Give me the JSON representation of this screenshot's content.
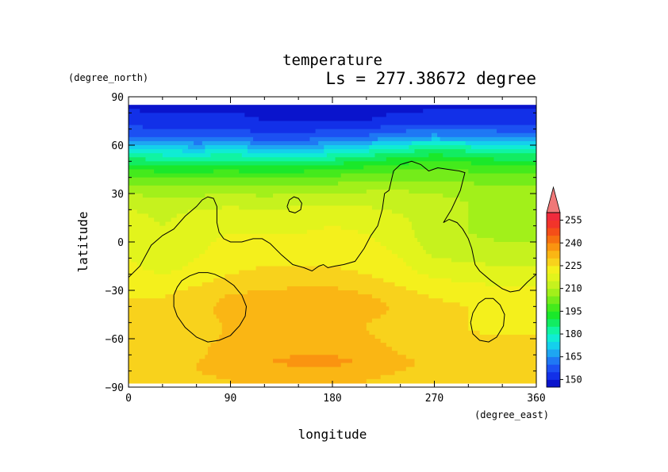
{
  "chart_data": {
    "type": "heatmap",
    "title": "temperature",
    "subtitle": "Ls = 277.38672 degree",
    "xlabel": "longitude",
    "ylabel": "latitude",
    "x_unit": "(degree_east)",
    "y_unit": "(degree_north)",
    "xlim": [
      0,
      360
    ],
    "ylim": [
      -90,
      90
    ],
    "x_ticks": [
      "0",
      "90",
      "180",
      "270",
      "360"
    ],
    "y_ticks": [
      "90",
      "60",
      "30",
      "0",
      "−30",
      "−60",
      "−90"
    ],
    "colorbar": {
      "labels": [
        "255",
        "240",
        "225",
        "210",
        "195",
        "180",
        "165",
        "150"
      ],
      "levels": [
        145,
        150,
        155,
        160,
        165,
        170,
        175,
        180,
        185,
        190,
        195,
        200,
        205,
        210,
        215,
        220,
        225,
        230,
        235,
        240,
        245,
        250,
        255,
        260
      ],
      "colors": [
        "#0a14cc",
        "#1230e8",
        "#1c50f2",
        "#1f78f4",
        "#1ea6f2",
        "#14d0ec",
        "#10ecd4",
        "#10f4a2",
        "#12ec62",
        "#1ae82a",
        "#44ea1c",
        "#74ec1a",
        "#a2f01a",
        "#c6f21e",
        "#e2f41c",
        "#f4f01c",
        "#f8d21c",
        "#fab614",
        "#fa9410",
        "#f67010",
        "#f44e18",
        "#f2342a",
        "#f02a3c"
      ],
      "over_color": "#f07878"
    },
    "field_lat_nodes": [
      85,
      75,
      65,
      60,
      55,
      50,
      45,
      40,
      35,
      30,
      25,
      20,
      15,
      10,
      5,
      0,
      -5,
      -10,
      -15,
      -20,
      -25,
      -30,
      -35,
      -40,
      -45,
      -50,
      -55,
      -60,
      -65,
      -70,
      -75,
      -80,
      -85
    ],
    "field_lon_nodes": [
      0,
      30,
      60,
      90,
      120,
      150,
      180,
      210,
      240,
      270,
      300,
      330,
      355
    ],
    "field_values": [
      [
        149,
        149,
        149,
        149,
        149,
        149,
        149,
        149,
        149,
        149,
        149,
        149,
        149
      ],
      [
        152,
        151,
        151,
        151,
        150,
        150,
        150,
        150,
        151,
        152,
        153,
        153,
        153
      ],
      [
        161,
        160,
        158,
        159,
        157,
        157,
        159,
        161,
        165,
        167,
        165,
        164,
        164
      ],
      [
        170,
        169,
        167,
        169,
        166,
        166,
        168,
        172,
        177,
        180,
        178,
        174,
        174
      ],
      [
        180,
        178,
        177,
        179,
        176,
        176,
        178,
        182,
        186,
        189,
        187,
        184,
        184
      ],
      [
        188,
        186,
        186,
        187,
        185,
        185,
        187,
        190,
        193,
        195,
        194,
        191,
        191
      ],
      [
        195,
        193,
        193,
        194,
        192,
        193,
        195,
        197,
        199,
        200,
        199,
        197,
        197
      ],
      [
        201,
        199,
        199,
        200,
        199,
        200,
        201,
        203,
        204,
        204,
        203,
        201,
        201
      ],
      [
        206,
        204,
        204,
        205,
        204,
        205,
        206,
        207,
        208,
        207,
        206,
        205,
        205
      ],
      [
        210,
        208,
        209,
        210,
        209,
        210,
        211,
        211,
        211,
        210,
        209,
        208,
        208
      ],
      [
        213,
        211,
        212,
        213,
        212,
        213,
        214,
        213,
        212,
        211,
        210,
        209,
        209
      ],
      [
        215,
        213,
        215,
        216,
        215,
        216,
        217,
        216,
        214,
        211,
        210,
        209,
        209
      ],
      [
        217,
        214,
        217,
        218,
        217,
        218,
        219,
        218,
        216,
        211,
        210,
        209,
        209
      ],
      [
        218,
        215,
        218,
        219,
        219,
        219,
        220,
        219,
        217,
        211,
        210,
        209,
        209
      ],
      [
        218,
        215,
        218,
        220,
        220,
        220,
        221,
        220,
        218,
        211,
        210,
        209,
        209
      ],
      [
        219,
        216,
        219,
        221,
        221,
        221,
        222,
        221,
        218,
        212,
        211,
        210,
        210
      ],
      [
        219,
        216,
        219,
        222,
        222,
        223,
        223,
        222,
        219,
        213,
        212,
        211,
        211
      ],
      [
        220,
        217,
        220,
        223,
        224,
        224,
        224,
        223,
        220,
        215,
        214,
        213,
        213
      ],
      [
        221,
        218,
        221,
        224,
        225,
        225,
        225,
        224,
        221,
        217,
        216,
        215,
        215
      ],
      [
        222,
        220,
        222,
        225,
        226,
        226,
        226,
        225,
        222,
        219,
        218,
        217,
        217
      ],
      [
        223,
        222,
        224,
        227,
        228,
        228,
        228,
        227,
        224,
        221,
        220,
        219,
        219
      ],
      [
        224,
        224,
        226,
        229,
        230,
        231,
        231,
        229,
        226,
        223,
        222,
        221,
        221
      ],
      [
        225,
        225,
        227,
        231,
        232,
        233,
        233,
        231,
        228,
        225,
        224,
        223,
        223
      ],
      [
        226,
        226,
        228,
        232,
        233,
        234,
        234,
        232,
        229,
        226,
        225,
        224,
        224
      ],
      [
        226,
        226,
        228,
        232,
        233,
        234,
        233,
        231,
        229,
        226,
        225,
        224,
        224
      ],
      [
        226,
        226,
        227,
        231,
        233,
        234,
        232,
        230,
        228,
        226,
        225,
        224,
        224
      ],
      [
        226,
        226,
        227,
        231,
        233,
        234,
        233,
        230,
        228,
        226,
        225,
        224,
        224
      ],
      [
        227,
        227,
        228,
        231,
        233,
        234,
        234,
        231,
        228,
        227,
        226,
        226,
        226
      ],
      [
        228,
        228,
        229,
        232,
        233,
        234,
        234,
        232,
        229,
        228,
        227,
        227,
        227
      ],
      [
        228,
        228,
        229,
        232,
        234,
        235,
        235,
        233,
        230,
        228,
        227,
        227,
        227
      ],
      [
        229,
        229,
        230,
        233,
        235,
        236,
        236,
        235,
        231,
        229,
        228,
        228,
        228
      ],
      [
        229,
        229,
        230,
        232,
        233,
        233,
        233,
        232,
        230,
        229,
        228,
        228,
        228
      ],
      [
        228,
        228,
        229,
        230,
        230,
        230,
        230,
        230,
        229,
        228,
        228,
        228,
        228
      ]
    ],
    "topography_contours": [
      {
        "name": "northern-highland-boundary",
        "points": [
          [
            0,
            -22
          ],
          [
            10,
            -15
          ],
          [
            20,
            -2
          ],
          [
            30,
            4
          ],
          [
            40,
            8
          ],
          [
            50,
            16
          ],
          [
            60,
            22
          ],
          [
            65,
            26
          ],
          [
            70,
            28
          ],
          [
            75,
            27
          ],
          [
            78,
            22
          ],
          [
            78,
            12
          ],
          [
            80,
            6
          ],
          [
            84,
            2
          ],
          [
            90,
            0
          ],
          [
            100,
            0
          ],
          [
            110,
            2
          ],
          [
            118,
            2
          ],
          [
            125,
            -1
          ],
          [
            135,
            -8
          ],
          [
            145,
            -14
          ],
          [
            155,
            -16
          ],
          [
            162,
            -18
          ],
          [
            168,
            -15
          ],
          [
            172,
            -14
          ],
          [
            176,
            -16
          ],
          [
            182,
            -15
          ],
          [
            190,
            -14
          ],
          [
            200,
            -12
          ],
          [
            208,
            -4
          ],
          [
            214,
            4
          ],
          [
            220,
            10
          ],
          [
            224,
            20
          ],
          [
            226,
            30
          ],
          [
            230,
            32
          ],
          [
            232,
            38
          ],
          [
            234,
            44
          ],
          [
            240,
            48
          ],
          [
            250,
            50
          ],
          [
            258,
            48
          ],
          [
            265,
            44
          ],
          [
            273,
            46
          ],
          [
            282,
            45
          ],
          [
            292,
            44
          ],
          [
            297,
            43
          ],
          [
            293,
            32
          ],
          [
            285,
            20
          ],
          [
            278,
            12
          ],
          [
            283,
            14
          ],
          [
            290,
            12
          ],
          [
            295,
            8
          ],
          [
            300,
            2
          ],
          [
            303,
            -4
          ],
          [
            306,
            -14
          ],
          [
            310,
            -18
          ],
          [
            320,
            -24
          ],
          [
            330,
            -29
          ],
          [
            337,
            -31
          ],
          [
            345,
            -30
          ],
          [
            352,
            -25
          ],
          [
            360,
            -20
          ]
        ]
      },
      {
        "name": "elysium-island",
        "points": [
          [
            140,
            22
          ],
          [
            142,
            26
          ],
          [
            146,
            28
          ],
          [
            150,
            27
          ],
          [
            153,
            24
          ],
          [
            152,
            20
          ],
          [
            147,
            18
          ],
          [
            142,
            19
          ],
          [
            140,
            22
          ]
        ]
      },
      {
        "name": "argyre-basin-rim",
        "points": [
          [
            40,
            -33
          ],
          [
            43,
            -28
          ],
          [
            47,
            -24
          ],
          [
            54,
            -21
          ],
          [
            62,
            -19
          ],
          [
            70,
            -19
          ],
          [
            76,
            -20
          ],
          [
            85,
            -23
          ],
          [
            93,
            -27
          ],
          [
            100,
            -33
          ],
          [
            104,
            -40
          ],
          [
            103,
            -46
          ],
          [
            98,
            -52
          ],
          [
            90,
            -58
          ],
          [
            80,
            -61
          ],
          [
            70,
            -62
          ],
          [
            60,
            -59
          ],
          [
            50,
            -53
          ],
          [
            43,
            -46
          ],
          [
            40,
            -40
          ],
          [
            40,
            -33
          ]
        ]
      },
      {
        "name": "southern-crater-rim",
        "points": [
          [
            302,
            -50
          ],
          [
            304,
            -44
          ],
          [
            309,
            -38
          ],
          [
            315,
            -35
          ],
          [
            322,
            -35
          ],
          [
            328,
            -39
          ],
          [
            332,
            -45
          ],
          [
            331,
            -52
          ],
          [
            325,
            -59
          ],
          [
            318,
            -62
          ],
          [
            310,
            -61
          ],
          [
            304,
            -57
          ],
          [
            302,
            -50
          ]
        ]
      }
    ]
  }
}
